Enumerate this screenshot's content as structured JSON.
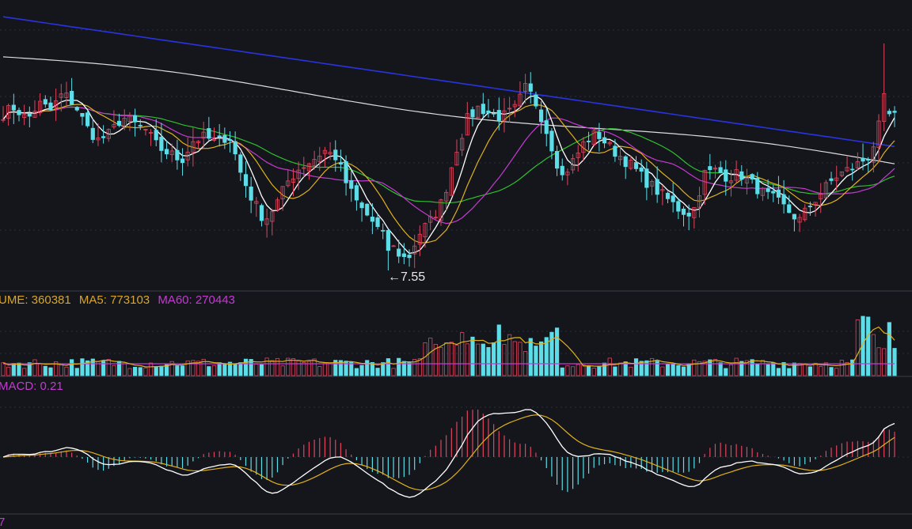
{
  "chart_data": {
    "type": "candlestick",
    "low_annotation": "←7.55",
    "colors": {
      "up": "#e0455e",
      "down": "#5cdde8",
      "ma5": "#ffffff",
      "ma10": "#e0b01e",
      "ma20": "#c53ad1",
      "ma30": "#2fbf2f",
      "ma60": "#dcdcdc",
      "ma120": "#2a33e0",
      "dif": "#ffffff",
      "dea": "#e0b01e",
      "vol_ma5": "#e0b01e",
      "vol_ma60": "#c53ad1"
    },
    "close_path": [
      9.9,
      10.0,
      9.8,
      10.05,
      9.95,
      10.2,
      10.05,
      9.7,
      9.5,
      9.6,
      9.85,
      9.75,
      9.65,
      9.4,
      9.3,
      9.2,
      9.5,
      9.55,
      9.45,
      9.6,
      9.0,
      8.6,
      8.3,
      8.55,
      8.9,
      9.1,
      9.2,
      9.35,
      9.25,
      8.8,
      8.5,
      8.3,
      8.05,
      7.85,
      7.7,
      8.1,
      8.3,
      8.6,
      9.3,
      9.8,
      10.0,
      9.9,
      9.85,
      9.95,
      10.3,
      10.0,
      9.5,
      8.95,
      9.2,
      9.5,
      9.6,
      9.4,
      9.25,
      9.1,
      8.9,
      8.75,
      8.6,
      8.45,
      8.4,
      9.0,
      9.05,
      8.95,
      9.0,
      8.85,
      8.7,
      8.6,
      8.45,
      8.3,
      8.55,
      8.75,
      8.95,
      9.05,
      9.15,
      9.3,
      9.9,
      9.85
    ]
  },
  "volume_panel": {
    "volume_label": "UME: 360381",
    "ma5_label": "MA5: 773103",
    "ma60_label": "MA60: 270443"
  },
  "macd_panel": {
    "label": "MACD: 0.21"
  },
  "bottom_panel": {
    "label": "7"
  }
}
